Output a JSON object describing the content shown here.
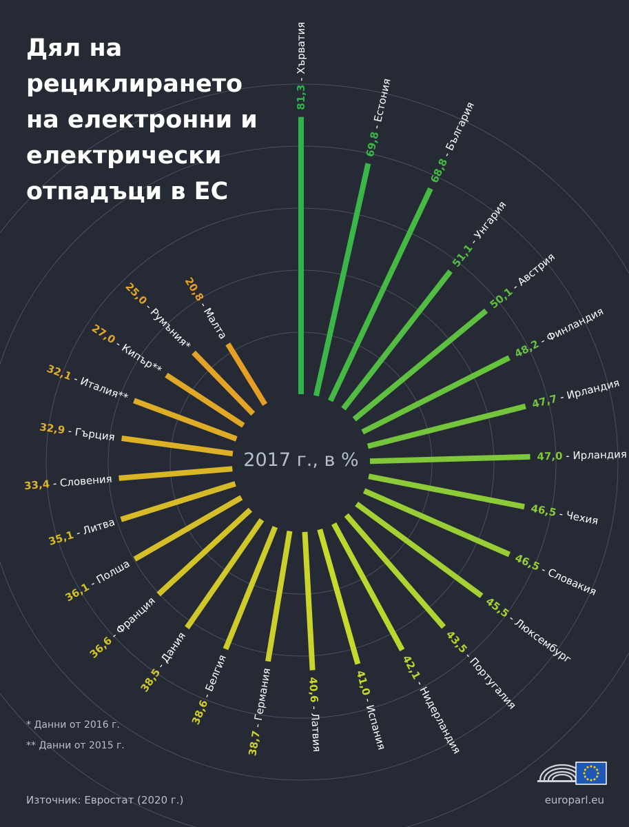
{
  "title_lines": [
    "Дял на",
    "рециклирането",
    "на електронни и",
    "електрически",
    "отпадъци в ЕС"
  ],
  "footnotes": [
    "* Данни от 2016 г.",
    "** Данни от 2015 г."
  ],
  "source": "Източник: Евростат (2020 г.)",
  "site": "europarl.eu",
  "chart_data": {
    "type": "bar",
    "layout": "radial",
    "center_label": "2017 г., в %",
    "categories": [
      "Хърватия",
      "Естония",
      "България",
      "Унгария",
      "Австрия",
      "Финландия",
      "Ирландия",
      "Ирландия",
      "Чехия",
      "Словакия",
      "Люксембург",
      "Португалия",
      "Нидерландия",
      "Испания",
      "Латвия",
      "Германия",
      "Белгия",
      "Дания",
      "Франция",
      "Полша",
      "Литва",
      "Словения",
      "Гърция",
      "Италия**",
      "Кипър**",
      "Румъния*",
      "Малта"
    ],
    "value_labels": [
      "81,3",
      "69,8",
      "68,8",
      "51,1",
      "50,1",
      "48,2",
      "47,7",
      "47,0",
      "46,5",
      "46,5",
      "45,5",
      "43,5",
      "42,1",
      "41,0",
      "40,6",
      "38,7",
      "38,6",
      "38,5",
      "36,6",
      "36,1",
      "35,1",
      "33,4",
      "32,9",
      "32,1",
      "27,0",
      "25,0",
      "20,8"
    ],
    "values": [
      81.3,
      69.8,
      68.8,
      51.1,
      50.1,
      48.2,
      47.7,
      47.0,
      46.5,
      46.5,
      45.5,
      43.5,
      42.1,
      41.0,
      40.6,
      38.7,
      38.6,
      38.5,
      36.6,
      36.1,
      35.1,
      33.4,
      32.9,
      32.1,
      27.0,
      25.0,
      20.8
    ],
    "unit": "%",
    "grid": true,
    "colors": {
      "high": "#2fb34a",
      "mid": "#c7d92c",
      "low": "#e59f25",
      "grid": "#5d6371",
      "background": "#252a35"
    }
  }
}
